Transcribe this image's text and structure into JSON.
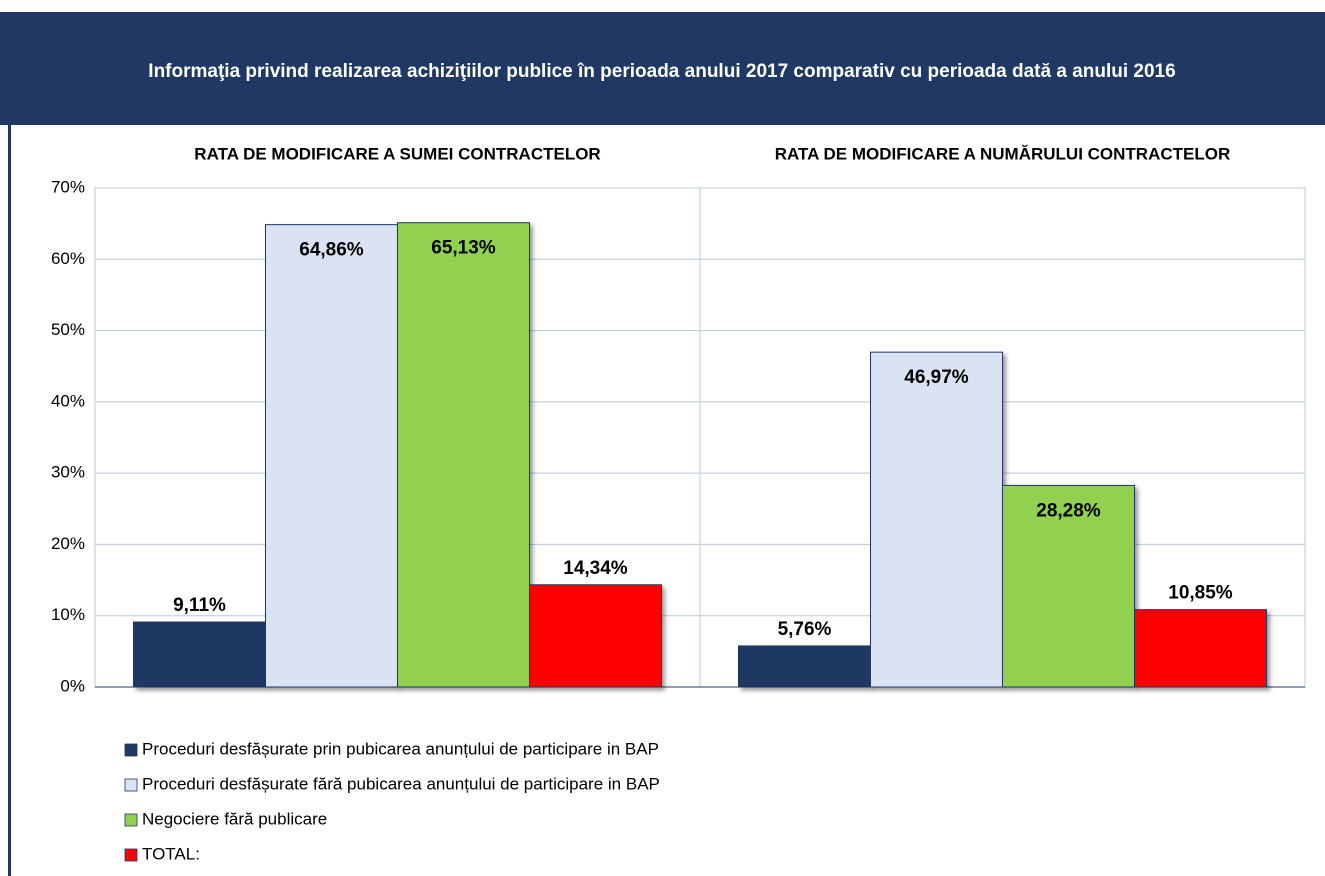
{
  "chart_data": {
    "type": "bar",
    "title": "Informaţia privind realizarea achiziţiilor publice în perioada anului 2017 comparativ cu perioada dată a anului 2016",
    "categories": [
      "RATA DE MODIFICARE A SUMEI CONTRACTELOR",
      "RATA DE MODIFICARE A NUMĂRULUI CONTRACTELOR"
    ],
    "series": [
      {
        "name": "Proceduri desfășurate prin pubicarea anunțului de participare in BAP",
        "color": "#1f3864",
        "values": [
          9.11,
          5.76
        ],
        "value_labels": [
          "9,11%",
          "5,76%"
        ]
      },
      {
        "name": "Proceduri desfășurate fără pubicarea anunțului de participare in BAP",
        "color": "#dae3f3",
        "values": [
          64.86,
          46.97
        ],
        "value_labels": [
          "64,86%",
          "46,97%"
        ]
      },
      {
        "name": "Negociere fără publicare",
        "color": "#92d050",
        "values": [
          65.13,
          28.28
        ],
        "value_labels": [
          "65,13%",
          "28,28%"
        ]
      },
      {
        "name": "TOTAL:",
        "color": "#ff0000",
        "values": [
          14.34,
          10.85
        ],
        "value_labels": [
          "14,34%",
          "10,85%"
        ]
      }
    ],
    "ylim": [
      0,
      70
    ],
    "yticks": [
      {
        "value": 0,
        "label": "0%"
      },
      {
        "value": 10,
        "label": "10%"
      },
      {
        "value": 20,
        "label": "20%"
      },
      {
        "value": 30,
        "label": "30%"
      },
      {
        "value": 40,
        "label": "40%"
      },
      {
        "value": 50,
        "label": "50%"
      },
      {
        "value": 60,
        "label": "60%"
      },
      {
        "value": 70,
        "label": "70%"
      }
    ],
    "grid": true
  }
}
